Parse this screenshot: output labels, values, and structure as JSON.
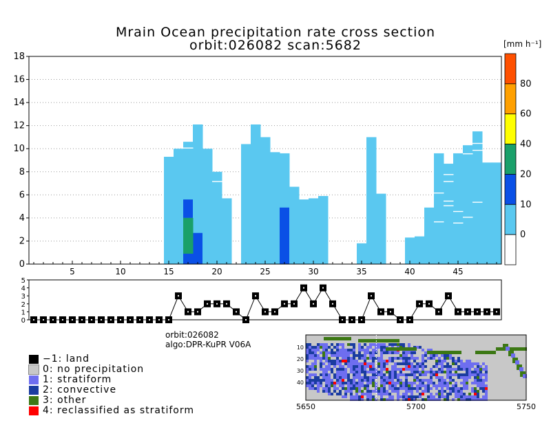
{
  "title": "Mrain Ocean precipitation rate cross section",
  "subtitle": "orbit:026082    scan:5682",
  "colorbar": {
    "unit_label": "[mm h⁻¹]",
    "ticks": [
      "0",
      "10",
      "20",
      "40",
      "60",
      "80"
    ],
    "colors": [
      "#ffffff",
      "#5ac8f0",
      "#0a50e6",
      "#1aa06a",
      "#ffff00",
      "#ffa000",
      "#ff5000"
    ]
  },
  "legend": {
    "items": [
      {
        "label": "−1: land",
        "color": "#000000"
      },
      {
        "label": "0: no precipitation",
        "color": "#c8c8c8"
      },
      {
        "label": "1: stratiform",
        "color": "#6e6ef0"
      },
      {
        "label": "2: convective",
        "color": "#1a3ca0"
      },
      {
        "label": "3: other",
        "color": "#3c7814"
      },
      {
        "label": "4: reclassified as stratiform",
        "color": "#ff0000"
      }
    ]
  },
  "info": {
    "orbit": "orbit:026082",
    "algo": "algo:DPR-KuPR V06A"
  },
  "map": {
    "x_ticks": [
      "5650",
      "5700",
      "5750"
    ],
    "y_ticks": [
      "10",
      "20",
      "30",
      "40"
    ],
    "colors": {
      "background": "#c8c8c8",
      "land": "#000000"
    }
  },
  "chart_data": [
    {
      "type": "heatmap",
      "title": "Mrain Ocean precipitation rate cross section",
      "xlabel": "",
      "ylabel": "",
      "xlim": [
        0.5,
        49.5
      ],
      "ylim": [
        0,
        18
      ],
      "x_ticks": [
        5,
        10,
        15,
        20,
        25,
        30,
        35,
        40,
        45
      ],
      "y_ticks": [
        0,
        2,
        4,
        6,
        8,
        10,
        12,
        14,
        16,
        18
      ],
      "colorbar_levels": [
        0,
        10,
        20,
        40,
        60,
        80
      ],
      "columns": [
        {
          "ray": 15,
          "top": 9.3
        },
        {
          "ray": 16,
          "top": 10.0,
          "core": {
            "top": 5.4,
            "bands": [
              {
                "from": 0,
                "to": 4.9,
                "level": 0
              }
            ]
          }
        },
        {
          "ray": 17,
          "top": 10.6,
          "core": {
            "top": 5.6,
            "bands": [
              {
                "from": 0,
                "to": 0.9,
                "level": 20
              },
              {
                "from": 0.9,
                "to": 4.0,
                "level": 20
              },
              {
                "from": 4.0,
                "to": 5.6,
                "level": 10
              }
            ]
          }
        },
        {
          "ray": 18,
          "top": 12.1,
          "core": {
            "top": 2.7,
            "bands": [
              {
                "from": 0,
                "to": 2.7,
                "level": 10
              }
            ]
          }
        },
        {
          "ray": 19,
          "top": 10.0
        },
        {
          "ray": 20,
          "top": 8.0
        },
        {
          "ray": 21,
          "top": 5.7
        },
        {
          "ray": 23,
          "top": 10.4
        },
        {
          "ray": 24,
          "top": 12.1
        },
        {
          "ray": 25,
          "top": 11.0
        },
        {
          "ray": 26,
          "top": 9.7
        },
        {
          "ray": 27,
          "top": 9.6,
          "core": {
            "top": 4.9,
            "bands": [
              {
                "from": 0,
                "to": 4.9,
                "level": 10
              }
            ]
          }
        },
        {
          "ray": 28,
          "top": 6.7
        },
        {
          "ray": 29,
          "top": 5.6
        },
        {
          "ray": 30,
          "top": 5.7
        },
        {
          "ray": 31,
          "top": 5.9
        },
        {
          "ray": 35,
          "top": 1.8
        },
        {
          "ray": 36,
          "top": 11.0
        },
        {
          "ray": 37,
          "top": 6.1
        },
        {
          "ray": 40,
          "top": 2.3
        },
        {
          "ray": 41,
          "top": 2.4
        },
        {
          "ray": 42,
          "top": 4.9
        },
        {
          "ray": 43,
          "top": 9.6
        },
        {
          "ray": 44,
          "top": 8.7
        },
        {
          "ray": 45,
          "top": 9.6
        },
        {
          "ray": 46,
          "top": 10.3
        },
        {
          "ray": 47,
          "top": 11.5
        },
        {
          "ray": 48,
          "top": 8.8
        },
        {
          "ray": 49,
          "top": 8.8
        }
      ],
      "gaps": [
        {
          "ray": 17,
          "y": 10.1
        },
        {
          "ray": 20,
          "y": 7.2
        },
        {
          "ray": 44,
          "y": 7.8
        },
        {
          "ray": 44,
          "y": 7.2
        },
        {
          "ray": 43,
          "y": 6.2
        },
        {
          "ray": 44,
          "y": 5.5
        },
        {
          "ray": 44,
          "y": 5.1
        },
        {
          "ray": 45,
          "y": 4.6
        },
        {
          "ray": 46,
          "y": 4.1
        },
        {
          "ray": 47,
          "y": 5.4
        },
        {
          "ray": 47,
          "y": 10.5
        },
        {
          "ray": 47,
          "y": 9.9
        },
        {
          "ray": 46,
          "y": 9.6
        },
        {
          "ray": 43,
          "y": 3.7
        },
        {
          "ray": 45,
          "y": 3.6
        }
      ]
    },
    {
      "type": "line",
      "title": "precipitation type",
      "ylim": [
        0,
        5
      ],
      "y_ticks": [
        0,
        1,
        2,
        3,
        4,
        5
      ],
      "x": [
        1,
        2,
        3,
        4,
        5,
        6,
        7,
        8,
        9,
        10,
        11,
        12,
        13,
        14,
        15,
        16,
        17,
        18,
        19,
        20,
        21,
        22,
        23,
        24,
        25,
        26,
        27,
        28,
        29,
        30,
        31,
        32,
        33,
        34,
        35,
        36,
        37,
        38,
        39,
        40,
        41,
        42,
        43,
        44,
        45,
        46,
        47,
        48,
        49
      ],
      "values": [
        0,
        0,
        0,
        0,
        0,
        0,
        0,
        0,
        0,
        0,
        0,
        0,
        0,
        0,
        0,
        3,
        1,
        1,
        2,
        2,
        2,
        1,
        0,
        3,
        1,
        1,
        2,
        2,
        4,
        2,
        4,
        2,
        0,
        0,
        0,
        3,
        1,
        1,
        0,
        0,
        2,
        2,
        1,
        3,
        1,
        1,
        1,
        1,
        1
      ]
    }
  ]
}
